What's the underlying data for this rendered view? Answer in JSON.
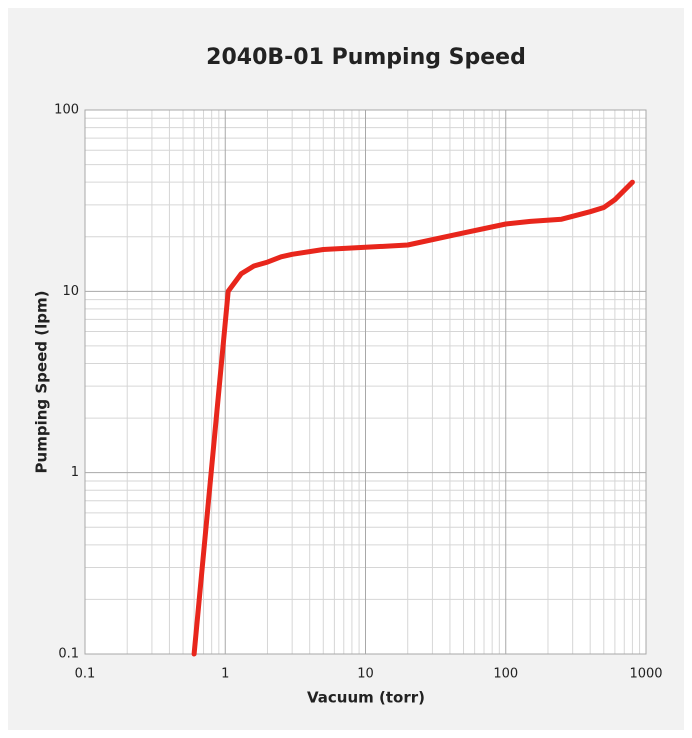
{
  "chart_data": {
    "type": "line",
    "title": "2040B-01 Pumping Speed",
    "x_label": "Vacuum (torr)",
    "y_label": "Pumping Speed (lpm)",
    "x": [
      0.6,
      1.05,
      1.3,
      1.6,
      2,
      2.5,
      3,
      5,
      10,
      20,
      50,
      100,
      150,
      250,
      400,
      500,
      600,
      800
    ],
    "series": [
      {
        "name": "2040B-01",
        "color": "#e8261c",
        "values": [
          0.1,
          10,
          12.5,
          13.8,
          14.5,
          15.5,
          16,
          17,
          17.5,
          18,
          21,
          23.5,
          24.3,
          25,
          27.5,
          29,
          32,
          40
        ]
      }
    ],
    "xlim": [
      0.1,
      1000
    ],
    "xticks": [
      0.1,
      1,
      10,
      100,
      1000
    ],
    "ylim": [
      0.1,
      100
    ],
    "yticks": [
      0.1,
      1,
      10,
      100
    ],
    "log_x": true,
    "log_y": true,
    "grid": true
  }
}
